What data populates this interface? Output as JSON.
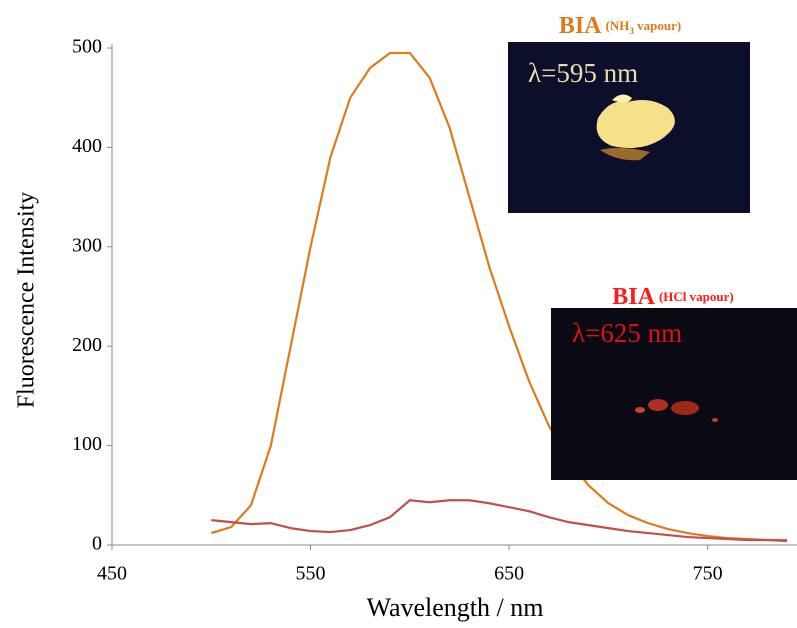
{
  "chart_data": {
    "type": "line",
    "x_label": "Wavelength / nm",
    "y_label": "Fluorescence Intensity",
    "xlim": [
      450,
      795
    ],
    "xticks": [
      450,
      550,
      650,
      750
    ],
    "ylim": [
      0,
      500
    ],
    "yticks": [
      0,
      100,
      200,
      300,
      400,
      500
    ],
    "x": [
      500,
      510,
      520,
      530,
      540,
      550,
      560,
      570,
      580,
      590,
      600,
      610,
      620,
      630,
      640,
      650,
      660,
      670,
      680,
      690,
      700,
      710,
      720,
      730,
      740,
      750,
      760,
      770,
      780,
      790
    ],
    "series": [
      {
        "color": "#e07b1a",
        "values": [
          12,
          18,
          40,
          100,
          200,
          300,
          390,
          450,
          480,
          495,
          495,
          470,
          420,
          350,
          280,
          220,
          165,
          120,
          85,
          60,
          42,
          30,
          22,
          16,
          12,
          9,
          7,
          6,
          5,
          5
        ]
      },
      {
        "color": "#c0504d",
        "values": [
          25,
          23,
          21,
          22,
          17,
          14,
          13,
          15,
          20,
          28,
          45,
          43,
          45,
          45,
          42,
          38,
          34,
          28,
          23,
          20,
          17,
          14,
          12,
          10,
          8,
          7,
          6,
          5,
          5,
          4
        ]
      }
    ],
    "annotations": [
      {
        "main": "BIA",
        "detail_start": "(NH",
        "subscript": "3",
        "detail_end": " vapour)",
        "wavelength": "λ=595 nm"
      },
      {
        "main": "BIA",
        "detail_start": "(HCl vapour)",
        "wavelength": "λ=625 nm"
      }
    ]
  }
}
